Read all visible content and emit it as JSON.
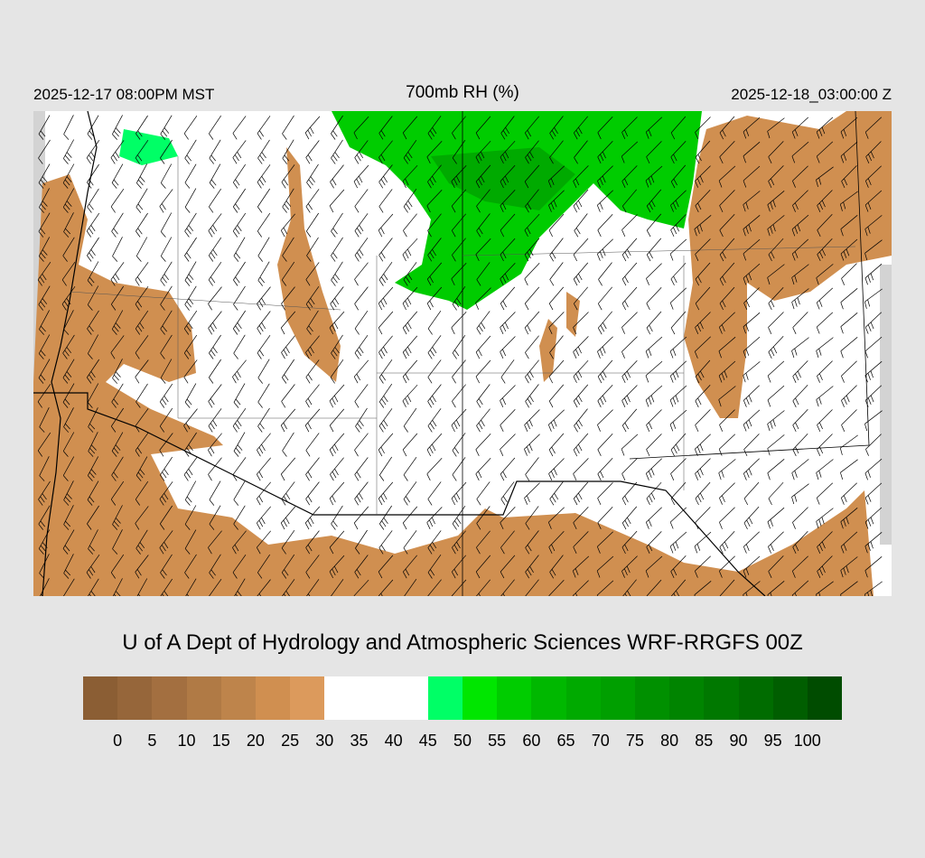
{
  "header": {
    "valid_local": "2025-12-17 08:00PM MST",
    "title": "700mb RH (%)",
    "valid_utc": "2025-12-18_03:00:00 Z"
  },
  "credit": "U of A Dept of Hydrology and Atmospheric Sciences WRF-RRGFS 00Z",
  "colorbar": {
    "labels": [
      "0",
      "5",
      "10",
      "15",
      "20",
      "25",
      "30",
      "35",
      "40",
      "45",
      "50",
      "55",
      "60",
      "65",
      "70",
      "75",
      "80",
      "85",
      "90",
      "95",
      "100"
    ],
    "colors": [
      "#8b5e34",
      "#96663a",
      "#a36f40",
      "#b07a45",
      "#be844b",
      "#d08f50",
      "#dc9a5c",
      "#ffffff",
      "#ffffff",
      "#ffffff",
      "#00ff66",
      "#00e600",
      "#00cc00",
      "#00b800",
      "#00aa00",
      "#009f00",
      "#009000",
      "#008400",
      "#007800",
      "#006c00",
      "#005e00",
      "#004c00"
    ]
  },
  "map": {
    "field": "700mb relative humidity with wind barbs",
    "background": "#ffffff",
    "outside_domain": "#d3d3d3",
    "dry_color": "#d08f50",
    "very_dry_color": "#b07a45",
    "moist_color": "#00cc00"
  }
}
